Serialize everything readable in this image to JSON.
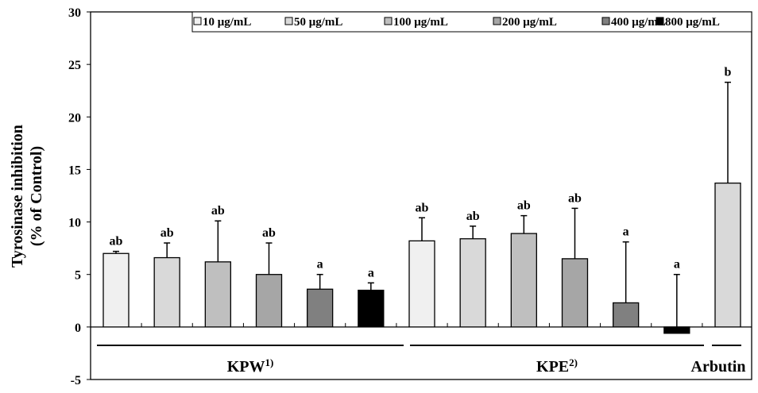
{
  "chart_data": {
    "type": "bar",
    "ylabel_lines": [
      "Tyrosinase inhibition",
      "(% of Control)"
    ],
    "ylim": [
      -5,
      30
    ],
    "yticks": [
      -5,
      0,
      5,
      10,
      15,
      20,
      25,
      30
    ],
    "grid": false,
    "legend_placement": "top-right",
    "legend": [
      {
        "label": "10 μg/mL",
        "color": "#f0f0f0"
      },
      {
        "label": "50 μg/mL",
        "color": "#d9d9d9"
      },
      {
        "label": "100 μg/mL",
        "color": "#bfbfbf"
      },
      {
        "label": "200 μg/mL",
        "color": "#a6a6a6"
      },
      {
        "label": "400 μg/mL",
        "color": "#808080"
      },
      {
        "label": "800 μg/mL",
        "color": "#000000"
      }
    ],
    "groups": [
      {
        "label": "KPW",
        "superscript": "1)",
        "bars": [
          {
            "value": 7.0,
            "error": 0.2,
            "letter": "ab",
            "color": "#f0f0f0"
          },
          {
            "value": 6.6,
            "error": 1.4,
            "letter": "ab",
            "color": "#d9d9d9"
          },
          {
            "value": 6.2,
            "error": 3.9,
            "letter": "ab",
            "color": "#bfbfbf"
          },
          {
            "value": 5.0,
            "error": 3.0,
            "letter": "ab",
            "color": "#a6a6a6"
          },
          {
            "value": 3.6,
            "error": 1.4,
            "letter": "a",
            "color": "#808080"
          },
          {
            "value": 3.5,
            "error": 0.7,
            "letter": "a",
            "color": "#000000"
          }
        ]
      },
      {
        "label": "KPE",
        "superscript": "2)",
        "bars": [
          {
            "value": 8.2,
            "error": 2.2,
            "letter": "ab",
            "color": "#f0f0f0"
          },
          {
            "value": 8.4,
            "error": 1.2,
            "letter": "ab",
            "color": "#d9d9d9"
          },
          {
            "value": 8.9,
            "error": 1.7,
            "letter": "ab",
            "color": "#bfbfbf"
          },
          {
            "value": 6.5,
            "error": 4.8,
            "letter": "ab",
            "color": "#a6a6a6"
          },
          {
            "value": 2.3,
            "error": 5.8,
            "letter": "a",
            "color": "#808080"
          },
          {
            "value": -0.6,
            "error": 5.6,
            "letter": "a",
            "color": "#000000"
          }
        ]
      },
      {
        "label": "Arbutin",
        "superscript": "",
        "bars": [
          {
            "value": 13.7,
            "error": 9.6,
            "letter": "b",
            "color": "#d9d9d9"
          }
        ]
      }
    ]
  }
}
